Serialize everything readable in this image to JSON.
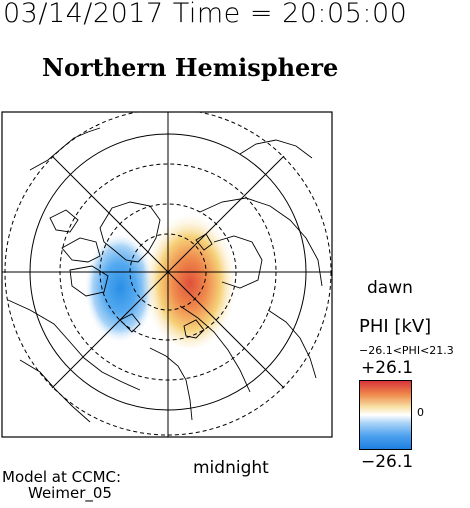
{
  "header": {
    "timestamp": "03/14/2017 Time = 20:05:00",
    "title": "Northern Hemisphere"
  },
  "map": {
    "type": "polar-potential-map",
    "labels": {
      "dawn": "dawn",
      "midnight": "midnight"
    },
    "colors": {
      "negative": "#2a8fe6",
      "positive": "#e0503a",
      "neutral": "#ffffff",
      "coastline": "#000000"
    }
  },
  "colorbar": {
    "title": "PHI [kV]",
    "range_text": "−26.1<PHI<21.3",
    "max_label": "+26.1",
    "min_label": "−26.1",
    "zero_label": "0",
    "min_value": -26.1,
    "max_value": 26.1
  },
  "footer": {
    "model_line1": "Model at CCMC:",
    "model_line2": "Weimer_05"
  }
}
